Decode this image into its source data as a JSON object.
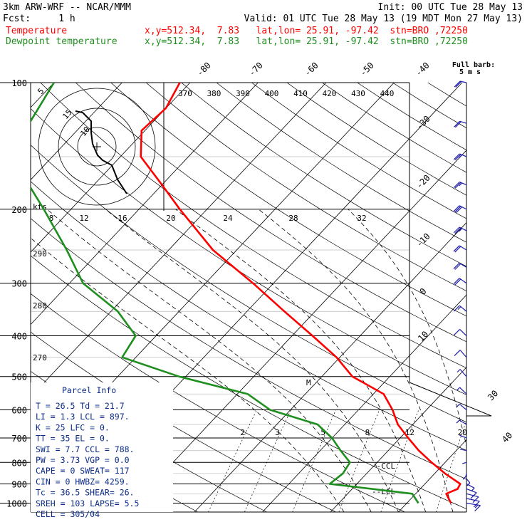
{
  "header": {
    "model": "3km ARW-WRF -- NCAR/MMM",
    "init": "Init: 00 UTC Tue 28 May 13",
    "fcst": "Fcst:     1 h",
    "valid": "Valid: 01 UTC Tue 28 May 13 (19 MDT Mon 27 May 13)",
    "temp_label": "Temperature",
    "temp_info": "x,y=512.34,  7.83   lat,lon= 25.91, -97.42  stn=BRO ,72250",
    "dew_label": "Dewpoint temperature",
    "dew_info": "x,y=512.34,  7.83   lat,lon= 25.91, -97.42  stn=BRO ,72250",
    "full_barb": "Full barb:",
    "barb_unit": "5 m s"
  },
  "colors": {
    "temperature": "#ff0000",
    "dewpoint": "#1f8f1f",
    "wind": "#1c1ca8",
    "parcel": "#0a2a8a",
    "dry_adiabat": "#000000",
    "isotherm": "#000000"
  },
  "chart_data": {
    "type": "line",
    "title": "Skew-T log-P sounding",
    "pressure_ticks": [
      "100",
      "200",
      "300",
      "400",
      "500",
      "600",
      "700",
      "800",
      "900",
      "1000"
    ],
    "isotherm_labels": [
      "-80",
      "-70",
      "-60",
      "-50",
      "-40",
      "-30",
      "-20",
      "-10",
      "0",
      "10",
      "20",
      "30",
      "40"
    ],
    "theta_labels": [
      "370",
      "380",
      "390",
      "400",
      "410",
      "420",
      "430",
      "440"
    ],
    "theta_left_labels": [
      "290",
      "280",
      "270"
    ],
    "hodograph_speed_labels": [
      "8",
      "12",
      "16",
      "20",
      "24",
      "28",
      "32"
    ],
    "hodograph_ring_labels": [
      "5",
      "10",
      "15"
    ],
    "hodograph_unit": "kts",
    "mixing_ratio_labels": [
      "2",
      "3",
      "5",
      "8",
      "12",
      "20"
    ],
    "markers": [
      "M",
      "--CCL",
      "--LCL"
    ],
    "series": [
      {
        "name": "Temperature",
        "points": [
          {
            "p": 1000,
            "t": 26.5
          },
          {
            "p": 950,
            "t": 24.5
          },
          {
            "p": 925,
            "t": 25.5
          },
          {
            "p": 900,
            "t": 25.2
          },
          {
            "p": 850,
            "t": 21.5
          },
          {
            "p": 800,
            "t": 18.0
          },
          {
            "p": 750,
            "t": 14.5
          },
          {
            "p": 700,
            "t": 11.2
          },
          {
            "p": 650,
            "t": 7.8
          },
          {
            "p": 600,
            "t": 5.0
          },
          {
            "p": 550,
            "t": 1.5
          },
          {
            "p": 500,
            "t": -5.5
          },
          {
            "p": 450,
            "t": -10.5
          },
          {
            "p": 400,
            "t": -17.0
          },
          {
            "p": 350,
            "t": -24.5
          },
          {
            "p": 300,
            "t": -33.0
          },
          {
            "p": 250,
            "t": -43.5
          },
          {
            "p": 200,
            "t": -54.0
          },
          {
            "p": 175,
            "t": -60.0
          },
          {
            "p": 150,
            "t": -67.0
          },
          {
            "p": 130,
            "t": -70.5
          },
          {
            "p": 115,
            "t": -70.0
          },
          {
            "p": 100,
            "t": -71.5
          }
        ]
      },
      {
        "name": "Dewpoint temperature",
        "points": [
          {
            "p": 1000,
            "t": 21.7
          },
          {
            "p": 950,
            "t": 19.5
          },
          {
            "p": 900,
            "t": 6.0
          },
          {
            "p": 850,
            "t": 6.5
          },
          {
            "p": 800,
            "t": 6.0
          },
          {
            "p": 750,
            "t": 3.0
          },
          {
            "p": 700,
            "t": 0.0
          },
          {
            "p": 650,
            "t": -4.0
          },
          {
            "p": 600,
            "t": -13.0
          },
          {
            "p": 550,
            "t": -18.5
          },
          {
            "p": 500,
            "t": -31.0
          },
          {
            "p": 450,
            "t": -42.0
          },
          {
            "p": 400,
            "t": -43.0
          },
          {
            "p": 350,
            "t": -49.0
          },
          {
            "p": 300,
            "t": -58.0
          },
          {
            "p": 250,
            "t": -65.0
          },
          {
            "p": 200,
            "t": -74.0
          },
          {
            "p": 150,
            "t": -86.0
          },
          {
            "p": 125,
            "t": -88.0
          },
          {
            "p": 100,
            "t": -90.0
          }
        ]
      }
    ],
    "winds": [
      {
        "p": 1000,
        "speed": 8,
        "dir": 140
      },
      {
        "p": 975,
        "speed": 7,
        "dir": 145
      },
      {
        "p": 950,
        "speed": 6,
        "dir": 150
      },
      {
        "p": 925,
        "speed": 5,
        "dir": 160
      },
      {
        "p": 900,
        "speed": 4,
        "dir": 170
      },
      {
        "p": 875,
        "speed": 3,
        "dir": 190
      },
      {
        "p": 850,
        "speed": 3,
        "dir": 210
      },
      {
        "p": 800,
        "speed": 2,
        "dir": 230
      },
      {
        "p": 750,
        "speed": 2,
        "dir": 250
      },
      {
        "p": 700,
        "speed": 2,
        "dir": 260
      },
      {
        "p": 650,
        "speed": 3,
        "dir": 270
      },
      {
        "p": 600,
        "speed": 3,
        "dir": 280
      },
      {
        "p": 550,
        "speed": 4,
        "dir": 285
      },
      {
        "p": 500,
        "speed": 4,
        "dir": 290
      },
      {
        "p": 450,
        "speed": 5,
        "dir": 290
      },
      {
        "p": 400,
        "speed": 6,
        "dir": 285
      },
      {
        "p": 350,
        "speed": 8,
        "dir": 280
      },
      {
        "p": 300,
        "speed": 10,
        "dir": 275
      },
      {
        "p": 275,
        "speed": 11,
        "dir": 270
      },
      {
        "p": 250,
        "speed": 12,
        "dir": 270
      },
      {
        "p": 225,
        "speed": 14,
        "dir": 265
      },
      {
        "p": 200,
        "speed": 15,
        "dir": 265
      },
      {
        "p": 175,
        "speed": 14,
        "dir": 260
      },
      {
        "p": 150,
        "speed": 13,
        "dir": 260
      },
      {
        "p": 125,
        "speed": 12,
        "dir": 255
      },
      {
        "p": 100,
        "speed": 10,
        "dir": 250
      }
    ]
  },
  "parcel_info": {
    "title": "Parcel Info",
    "rows": [
      "T   =    26.5  Td =  21.7",
      "LI  =     1.3  LCL =  897.",
      "K   =      25  LFC =    0.",
      "TT  =      35  EL  =    0.",
      "SWI =     7.7  CCL =  788.",
      "PW  =    3.73  VGP =   0.0",
      "CAPE =      0  SWEAT=  117",
      "CIN  =      0  HWBZ= 4259.",
      "Tc  =    36.5  SHEAR=   26.",
      "SREH =    103  LAPSE=   5.5",
      "CELL = 305/04"
    ]
  }
}
